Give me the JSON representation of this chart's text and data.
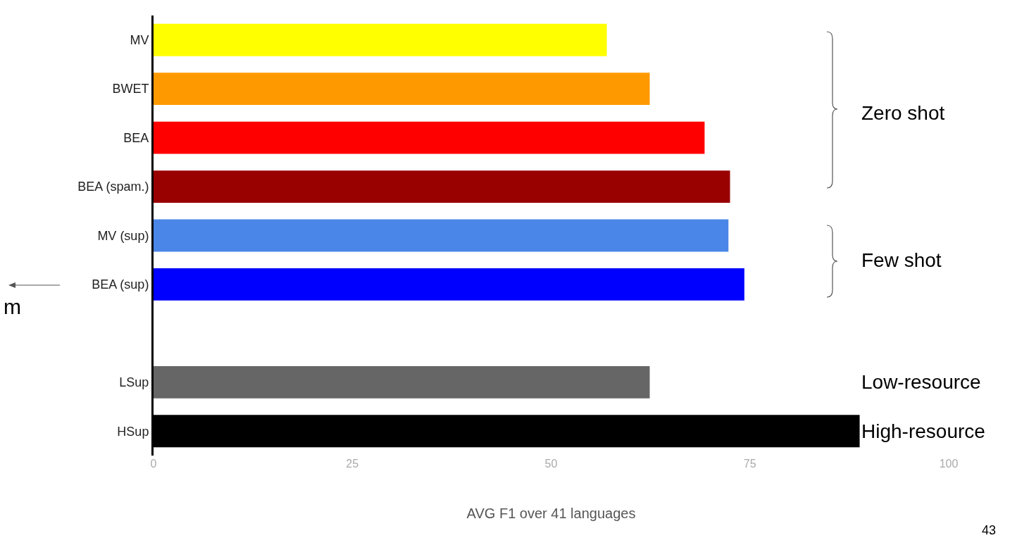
{
  "chart_data": {
    "type": "bar",
    "orientation": "horizontal",
    "xlabel": "AVG F1 over 41 languages",
    "categories": [
      "MV",
      "BWET",
      "BEA",
      "BEA (spam.)",
      "MV (sup)",
      "BEA (sup)",
      null,
      "LSup",
      "HSup"
    ],
    "values": [
      57.0,
      62.4,
      69.3,
      72.5,
      72.3,
      74.3,
      null,
      62.4,
      88.8
    ],
    "colors": [
      "#ffff00",
      "#ff9900",
      "#ff0000",
      "#990000",
      "#4a86e8",
      "#0000ff",
      "#ffffff",
      "#666666",
      "#000000"
    ],
    "xlim": [
      0,
      100
    ],
    "xticks": [
      0,
      25,
      50,
      75,
      100
    ],
    "grid": false,
    "annotations": [
      "Zero shot",
      "Few shot",
      "Low-resource",
      "High-resource",
      "m",
      "43"
    ]
  }
}
